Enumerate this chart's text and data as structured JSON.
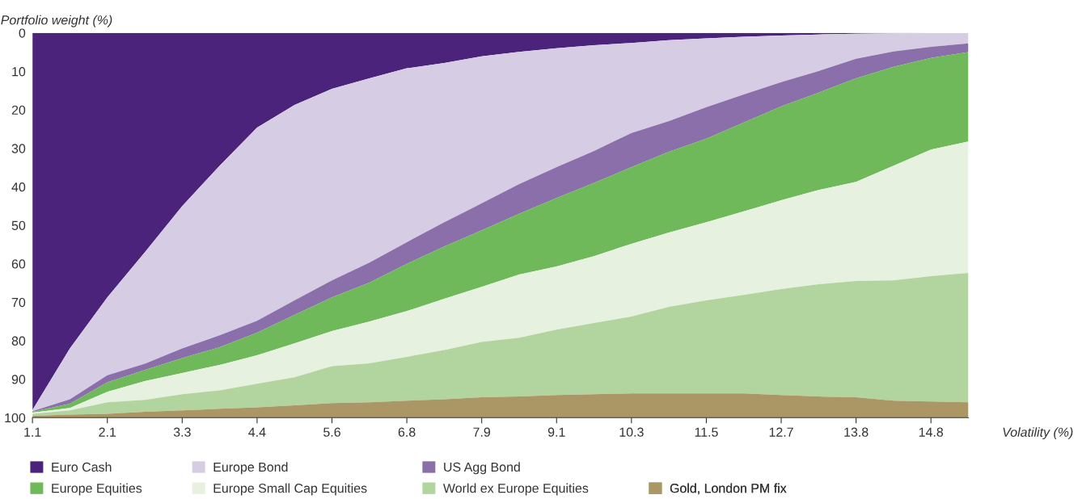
{
  "chart_data": {
    "type": "area",
    "stacked": true,
    "xlabel": "Volatility (%)",
    "ylabel": "Portfolio weight (%)",
    "categories": [
      "1.1",
      null,
      "2.1",
      null,
      "3.3",
      null,
      "4.4",
      null,
      "5.6",
      null,
      "6.8",
      null,
      "7.9",
      null,
      "9.1",
      null,
      "10.3",
      null,
      "11.5",
      null,
      "12.7",
      null,
      "13.8",
      null,
      "14.8",
      null
    ],
    "ylim": [
      100,
      0
    ],
    "yticks": [
      0,
      10,
      20,
      30,
      40,
      50,
      60,
      70,
      80,
      90,
      100
    ],
    "legend": "bottom",
    "series": [
      {
        "name": "Euro Cash",
        "color": "#4b237b",
        "values": [
          98,
          82,
          68.7,
          57,
          45,
          34.5,
          24.6,
          18.7,
          14.5,
          11.8,
          9.2,
          7.8,
          6.1,
          4.9,
          4.0,
          3.2,
          2.6,
          1.9,
          1.4,
          1.0,
          0.7,
          0.4,
          0.2,
          0.1,
          0,
          0
        ]
      },
      {
        "name": "Europe Bond",
        "color": "#d6cde5",
        "values": [
          0.3,
          13.2,
          20.3,
          29,
          37,
          44.1,
          50.2,
          50.8,
          49.8,
          47.9,
          45.2,
          41.4,
          38.2,
          34.4,
          30.9,
          27.5,
          23.4,
          21.0,
          17.9,
          15.0,
          12.1,
          9.5,
          6.5,
          4.7,
          3.6,
          2.7
        ]
      },
      {
        "name": "US Agg Bond",
        "color": "#8a6fab",
        "values": [
          0.2,
          1.2,
          1.8,
          1.6,
          2.5,
          3.1,
          3.1,
          3.8,
          4.4,
          5.2,
          5.6,
          6.3,
          7.0,
          7.7,
          8.0,
          8.3,
          8.9,
          8.0,
          8.2,
          7.3,
          6.3,
          5.6,
          5.1,
          4.0,
          2.9,
          2.3
        ]
      },
      {
        "name": "Europe Equities",
        "color": "#6fb95a",
        "values": [
          0.2,
          1.1,
          2.5,
          2.9,
          3.9,
          4.6,
          5.9,
          7.4,
          8.8,
          10.1,
          12.3,
          13.6,
          14.7,
          15.8,
          17.8,
          19.0,
          19.9,
          21.0,
          21.7,
          23.1,
          24.4,
          25.3,
          26.9,
          25.7,
          23.8,
          23.2
        ]
      },
      {
        "name": "Europe Small Cap Equities",
        "color": "#e6f1e0",
        "values": [
          0.3,
          0.6,
          2.7,
          4.9,
          5.5,
          6.6,
          7.4,
          8.8,
          9.1,
          10.9,
          11.9,
          13.3,
          14.3,
          16.4,
          16.4,
          17.4,
          18.9,
          19.3,
          20.3,
          21.7,
          23.1,
          24.5,
          25.8,
          29.8,
          32.9,
          34.2
        ]
      },
      {
        "name": "World ex Europe Equities",
        "color": "#b2d49e",
        "values": [
          0.5,
          1.1,
          3.0,
          3.1,
          4.2,
          4.8,
          6.1,
          7.3,
          9.6,
          10.1,
          11.4,
          12.8,
          14.4,
          15.3,
          17.0,
          18.5,
          20.0,
          22.5,
          24.2,
          25.6,
          27.5,
          29.2,
          30.2,
          31.3,
          32.6,
          33.6
        ]
      },
      {
        "name": "Gold, London PM fix",
        "color": "#ab9765",
        "values": [
          0.5,
          0.8,
          1.0,
          1.5,
          1.9,
          2.3,
          2.7,
          3.2,
          3.8,
          4.0,
          4.4,
          4.8,
          5.3,
          5.5,
          5.9,
          6.1,
          6.3,
          6.3,
          6.3,
          6.3,
          5.9,
          5.5,
          5.3,
          4.4,
          4.2,
          4.0
        ]
      }
    ]
  }
}
